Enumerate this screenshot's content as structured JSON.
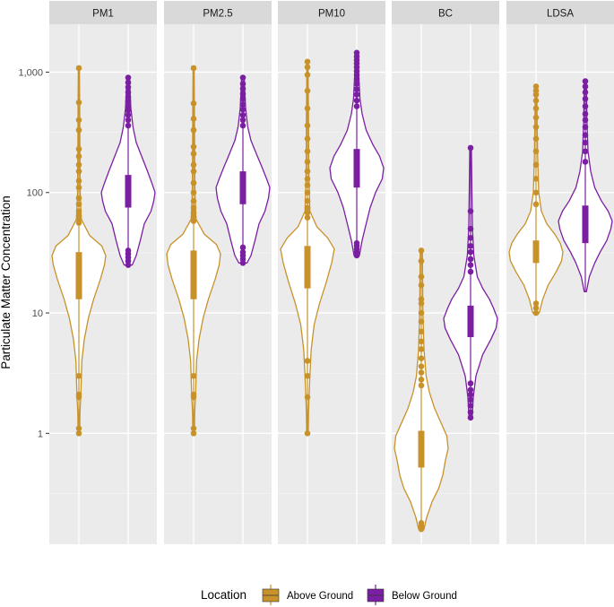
{
  "chart_data": {
    "type": "violin",
    "ylabel": "Particulate Matter Concentration",
    "yscale": "log10",
    "ylim": [
      0.12,
      2500
    ],
    "y_ticks": [
      {
        "value": 1,
        "label": "1"
      },
      {
        "value": 10,
        "label": "10"
      },
      {
        "value": 100,
        "label": "100"
      },
      {
        "value": 1000,
        "label": "1,000"
      }
    ],
    "legend": {
      "title": "Location",
      "placement": "bottom",
      "entries": [
        {
          "label": "Above Ground",
          "color": "#c8922b"
        },
        {
          "label": "Below Ground",
          "color": "#7b1fa2"
        }
      ]
    },
    "panels": [
      {
        "label": "PM1",
        "groups": [
          {
            "location": "Above Ground",
            "whisker_low": 1.0,
            "q1": 13,
            "median": 22,
            "q3": 32,
            "whisker_high": 52,
            "range": [
              1.0,
              1080
            ],
            "outliers": [
              1.0,
              1.1,
              2.0,
              2.1,
              3.0,
              56,
              60,
              64,
              70,
              80,
              90,
              110,
              125,
              150,
              170,
              200,
              230,
              330,
              400,
              560,
              1080
            ],
            "density": [
              [
                1.0,
                0.03
              ],
              [
                1.5,
                0.04
              ],
              [
                2.0,
                0.07
              ],
              [
                2.8,
                0.09
              ],
              [
                4.0,
                0.11
              ],
              [
                6.0,
                0.2
              ],
              [
                9.0,
                0.35
              ],
              [
                13,
                0.55
              ],
              [
                19,
                0.8
              ],
              [
                25,
                0.95
              ],
              [
                30,
                1.0
              ],
              [
                36,
                0.85
              ],
              [
                44,
                0.4
              ],
              [
                60,
                0.09
              ],
              [
                100,
                0.05
              ],
              [
                200,
                0.04
              ],
              [
                500,
                0.03
              ],
              [
                1080,
                0.02
              ]
            ]
          },
          {
            "location": "Below Ground",
            "whisker_low": 35,
            "q1": 75,
            "median": 100,
            "q3": 140,
            "whisker_high": 300,
            "range": [
              25,
              900
            ],
            "outliers": [
              25,
              27,
              29,
              31,
              33,
              360,
              400,
              440,
              480,
              520,
              570,
              620,
              680,
              750,
              820,
              900
            ],
            "density": [
              [
                25,
                0.15
              ],
              [
                30,
                0.3
              ],
              [
                40,
                0.45
              ],
              [
                55,
                0.6
              ],
              [
                70,
                0.85
              ],
              [
                85,
                0.95
              ],
              [
                100,
                1.0
              ],
              [
                120,
                0.88
              ],
              [
                150,
                0.72
              ],
              [
                200,
                0.5
              ],
              [
                260,
                0.3
              ],
              [
                350,
                0.18
              ],
              [
                500,
                0.1
              ],
              [
                700,
                0.07
              ],
              [
                900,
                0.05
              ]
            ]
          }
        ]
      },
      {
        "label": "PM2.5",
        "groups": [
          {
            "location": "Above Ground",
            "whisker_low": 1.0,
            "q1": 13,
            "median": 22,
            "q3": 33,
            "whisker_high": 55,
            "range": [
              1.0,
              1080
            ],
            "outliers": [
              1.0,
              1.1,
              2.0,
              2.1,
              3.0,
              58,
              62,
              68,
              75,
              85,
              100,
              120,
              150,
              170,
              210,
              240,
              330,
              410,
              550,
              1080
            ],
            "density": [
              [
                1.0,
                0.03
              ],
              [
                1.5,
                0.04
              ],
              [
                2.0,
                0.07
              ],
              [
                2.8,
                0.09
              ],
              [
                4.0,
                0.11
              ],
              [
                6.0,
                0.2
              ],
              [
                9.0,
                0.35
              ],
              [
                13,
                0.55
              ],
              [
                19,
                0.8
              ],
              [
                25,
                0.95
              ],
              [
                31,
                1.0
              ],
              [
                37,
                0.85
              ],
              [
                45,
                0.4
              ],
              [
                60,
                0.09
              ],
              [
                100,
                0.05
              ],
              [
                200,
                0.04
              ],
              [
                500,
                0.03
              ],
              [
                1080,
                0.02
              ]
            ]
          },
          {
            "location": "Below Ground",
            "whisker_low": 38,
            "q1": 80,
            "median": 110,
            "q3": 150,
            "whisker_high": 300,
            "range": [
              26,
              900
            ],
            "outliers": [
              26,
              28,
              30,
              32,
              35,
              360,
              400,
              440,
              490,
              540,
              600,
              660,
              730,
              800,
              900
            ],
            "density": [
              [
                26,
                0.15
              ],
              [
                30,
                0.3
              ],
              [
                40,
                0.45
              ],
              [
                55,
                0.6
              ],
              [
                70,
                0.82
              ],
              [
                90,
                0.95
              ],
              [
                110,
                1.0
              ],
              [
                130,
                0.88
              ],
              [
                160,
                0.72
              ],
              [
                210,
                0.5
              ],
              [
                270,
                0.3
              ],
              [
                350,
                0.18
              ],
              [
                500,
                0.1
              ],
              [
                700,
                0.07
              ],
              [
                900,
                0.05
              ]
            ]
          }
        ]
      },
      {
        "label": "PM10",
        "groups": [
          {
            "location": "Above Ground",
            "whisker_low": 1.0,
            "q1": 16,
            "median": 25,
            "q3": 36,
            "whisker_high": 58,
            "range": [
              1.0,
              1220
            ],
            "outliers": [
              1.0,
              2.0,
              3.0,
              4.0,
              62,
              68,
              75,
              85,
              100,
              115,
              130,
              150,
              180,
              220,
              280,
              360,
              500,
              700,
              950,
              1100,
              1220
            ],
            "density": [
              [
                1.0,
                0.03
              ],
              [
                1.5,
                0.04
              ],
              [
                2.0,
                0.06
              ],
              [
                3.0,
                0.09
              ],
              [
                5.0,
                0.14
              ],
              [
                8.0,
                0.25
              ],
              [
                12,
                0.45
              ],
              [
                18,
                0.7
              ],
              [
                26,
                0.9
              ],
              [
                34,
                1.0
              ],
              [
                42,
                0.75
              ],
              [
                52,
                0.35
              ],
              [
                70,
                0.09
              ],
              [
                150,
                0.05
              ],
              [
                400,
                0.04
              ],
              [
                1220,
                0.02
              ]
            ]
          },
          {
            "location": "Below Ground",
            "whisker_low": 50,
            "q1": 110,
            "median": 150,
            "q3": 230,
            "whisker_high": 480,
            "range": [
              30,
              1450
            ],
            "outliers": [
              30,
              32,
              34,
              36,
              38,
              520,
              580,
              650,
              720,
              800,
              880,
              950,
              1020,
              1100,
              1180,
              1260,
              1350,
              1450
            ],
            "density": [
              [
                30,
                0.1
              ],
              [
                40,
                0.2
              ],
              [
                55,
                0.35
              ],
              [
                75,
                0.5
              ],
              [
                100,
                0.7
              ],
              [
                130,
                0.95
              ],
              [
                160,
                1.0
              ],
              [
                200,
                0.85
              ],
              [
                250,
                0.6
              ],
              [
                330,
                0.35
              ],
              [
                450,
                0.2
              ],
              [
                600,
                0.12
              ],
              [
                900,
                0.08
              ],
              [
                1200,
                0.06
              ],
              [
                1450,
                0.05
              ]
            ]
          }
        ]
      },
      {
        "label": "BC",
        "groups": [
          {
            "location": "Above Ground",
            "whisker_low": 0.17,
            "q1": 0.52,
            "median": 0.72,
            "q3": 1.05,
            "whisker_high": 2.2,
            "range": [
              0.16,
              33
            ],
            "outliers": [
              0.16,
              0.17,
              0.18,
              2.5,
              2.8,
              3.2,
              3.6,
              4.2,
              5.0,
              5.8,
              7.0,
              8.5,
              10,
              12,
              13,
              17,
              20,
              27,
              33
            ],
            "density": [
              [
                0.16,
                0.1
              ],
              [
                0.2,
                0.2
              ],
              [
                0.27,
                0.4
              ],
              [
                0.35,
                0.65
              ],
              [
                0.45,
                0.8
              ],
              [
                0.6,
                0.9
              ],
              [
                0.75,
                1.0
              ],
              [
                0.95,
                0.95
              ],
              [
                1.2,
                0.75
              ],
              [
                1.6,
                0.5
              ],
              [
                2.2,
                0.3
              ],
              [
                3.0,
                0.18
              ],
              [
                5.0,
                0.1
              ],
              [
                10,
                0.06
              ],
              [
                33,
                0.04
              ]
            ]
          },
          {
            "location": "Below Ground",
            "whisker_low": 2.5,
            "q1": 6.3,
            "median": 8.5,
            "q3": 11.5,
            "whisker_high": 20,
            "range": [
              1.35,
              235
            ],
            "outliers": [
              1.35,
              1.5,
              1.7,
              1.9,
              2.1,
              2.3,
              2.6,
              22,
              25,
              28,
              32,
              36,
              42,
              50,
              70,
              235
            ],
            "density": [
              [
                1.35,
                0.06
              ],
              [
                2.0,
                0.1
              ],
              [
                3.0,
                0.2
              ],
              [
                4.5,
                0.45
              ],
              [
                6.0,
                0.75
              ],
              [
                7.5,
                0.95
              ],
              [
                9.0,
                1.0
              ],
              [
                11,
                0.85
              ],
              [
                13,
                0.7
              ],
              [
                16,
                0.45
              ],
              [
                20,
                0.25
              ],
              [
                30,
                0.12
              ],
              [
                50,
                0.07
              ],
              [
                100,
                0.05
              ],
              [
                235,
                0.03
              ]
            ]
          }
        ]
      },
      {
        "label": "LDSA",
        "groups": [
          {
            "location": "Above Ground",
            "whisker_low": 14,
            "q1": 26,
            "median": 33,
            "q3": 40,
            "whisker_high": 70,
            "range": [
              10,
              760
            ],
            "outliers": [
              10,
              11,
              12,
              80,
              100,
              130,
              170,
              220,
              280,
              350,
              420,
              500,
              580,
              650,
              700,
              760
            ],
            "density": [
              [
                10,
                0.12
              ],
              [
                13,
                0.25
              ],
              [
                17,
                0.45
              ],
              [
                22,
                0.75
              ],
              [
                27,
                0.95
              ],
              [
                32,
                1.0
              ],
              [
                38,
                0.9
              ],
              [
                45,
                0.7
              ],
              [
                55,
                0.4
              ],
              [
                70,
                0.2
              ],
              [
                100,
                0.1
              ],
              [
                200,
                0.06
              ],
              [
                400,
                0.04
              ],
              [
                760,
                0.03
              ]
            ]
          },
          {
            "location": "Below Ground",
            "whisker_low": 20,
            "q1": 38,
            "median": 55,
            "q3": 78,
            "whisker_high": 160,
            "range": [
              15,
              840
            ],
            "outliers": [
              180,
              220,
              260,
              300,
              350,
              400,
              450,
              520,
              600,
              680,
              760,
              840
            ],
            "density": [
              [
                15,
                0.04
              ],
              [
                20,
                0.15
              ],
              [
                26,
                0.35
              ],
              [
                32,
                0.55
              ],
              [
                40,
                0.8
              ],
              [
                50,
                0.95
              ],
              [
                58,
                1.0
              ],
              [
                70,
                0.85
              ],
              [
                85,
                0.6
              ],
              [
                110,
                0.35
              ],
              [
                150,
                0.2
              ],
              [
                220,
                0.1
              ],
              [
                400,
                0.06
              ],
              [
                840,
                0.04
              ]
            ]
          }
        ]
      }
    ]
  }
}
